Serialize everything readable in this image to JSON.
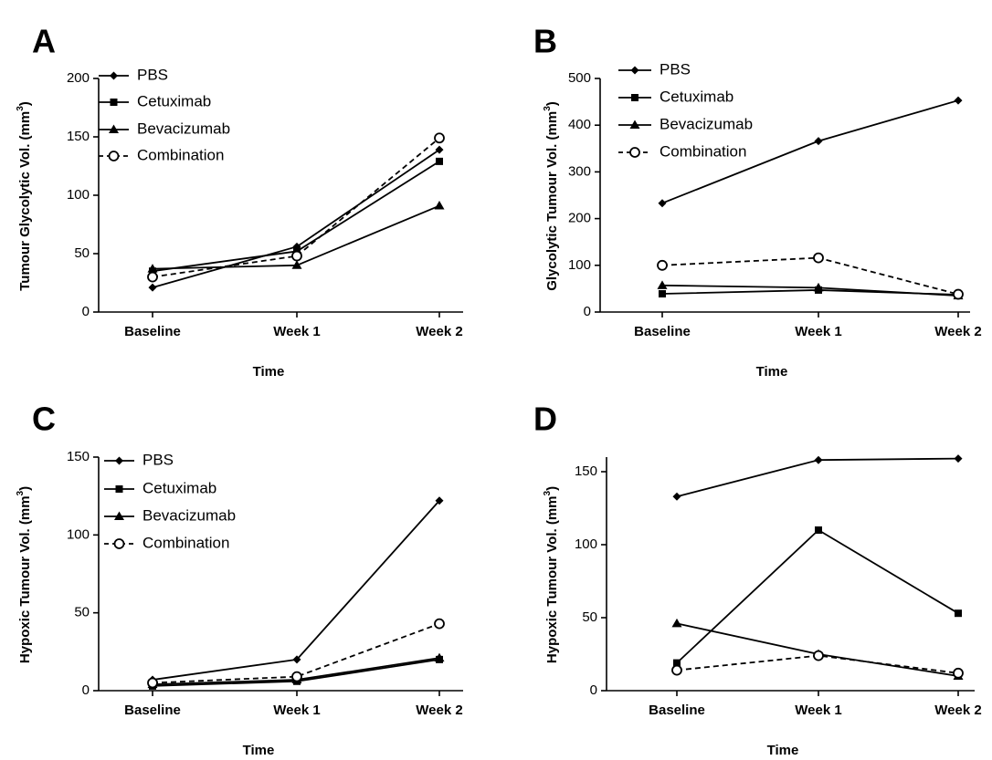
{
  "chart_data": [
    {
      "type": "line",
      "panel": "A",
      "xlabel": "Time",
      "ylabel": "Tumour Glycolytic Vol. (mm",
      "ylabel_sup": "3",
      "ylabel_end": ")",
      "categories": [
        "Baseline",
        "Week 1",
        "Week 2"
      ],
      "ylim": [
        0,
        200
      ],
      "yticks": [
        0,
        50,
        100,
        150,
        200
      ],
      "legend": "top-left",
      "series": [
        {
          "name": "PBS",
          "values": [
            21,
            56,
            139
          ],
          "marker": "diamond",
          "dash": false
        },
        {
          "name": "Cetuximab",
          "values": [
            35,
            52,
            129
          ],
          "marker": "square",
          "dash": false
        },
        {
          "name": "Bevacizumab",
          "values": [
            37,
            40,
            91
          ],
          "marker": "triangle",
          "dash": false
        },
        {
          "name": "Combination",
          "values": [
            30,
            48,
            149
          ],
          "marker": "circle-open",
          "dash": true
        }
      ]
    },
    {
      "type": "line",
      "panel": "B",
      "xlabel": "Time",
      "ylabel": "Glycolytic Tumour Vol. (mm",
      "ylabel_sup": "3",
      "ylabel_end": ")",
      "categories": [
        "Baseline",
        "Week 1",
        "Week 2"
      ],
      "ylim": [
        0,
        500
      ],
      "yticks": [
        0,
        100,
        200,
        300,
        400,
        500
      ],
      "legend": "top-left",
      "series": [
        {
          "name": "PBS",
          "values": [
            233,
            366,
            453
          ],
          "marker": "diamond",
          "dash": false
        },
        {
          "name": "Cetuximab",
          "values": [
            39,
            47,
            37
          ],
          "marker": "square",
          "dash": false
        },
        {
          "name": "Bevacizumab",
          "values": [
            57,
            52,
            35
          ],
          "marker": "triangle",
          "dash": false
        },
        {
          "name": "Combination",
          "values": [
            100,
            116,
            38
          ],
          "marker": "circle-open",
          "dash": true
        }
      ]
    },
    {
      "type": "line",
      "panel": "C",
      "xlabel": "Time",
      "ylabel": "Hypoxic Tumour Vol. (mm",
      "ylabel_sup": "3",
      "ylabel_end": ")",
      "categories": [
        "Baseline",
        "Week 1",
        "Week 2"
      ],
      "ylim": [
        0,
        150
      ],
      "yticks": [
        0,
        50,
        100,
        150
      ],
      "legend": "top-left",
      "series": [
        {
          "name": "PBS",
          "values": [
            7,
            20,
            122
          ],
          "marker": "diamond",
          "dash": false
        },
        {
          "name": "Cetuximab",
          "values": [
            3,
            6,
            20
          ],
          "marker": "square",
          "dash": false
        },
        {
          "name": "Bevacizumab",
          "values": [
            4,
            7,
            21
          ],
          "marker": "triangle",
          "dash": false
        },
        {
          "name": "Combination",
          "values": [
            5,
            9,
            43
          ],
          "marker": "circle-open",
          "dash": true
        }
      ]
    },
    {
      "type": "line",
      "panel": "D",
      "xlabel": "Time",
      "ylabel": "Hypoxic Tumour Vol. (mm",
      "ylabel_sup": "3",
      "ylabel_end": ")",
      "categories": [
        "Baseline",
        "Week 1",
        "Week 2"
      ],
      "ylim": [
        0,
        160
      ],
      "yticks": [
        0,
        50,
        100,
        150
      ],
      "legend": "none",
      "series": [
        {
          "values": [
            133,
            158,
            159
          ],
          "marker": "diamond",
          "dash": false
        },
        {
          "values": [
            19,
            110,
            53
          ],
          "marker": "square",
          "dash": false
        },
        {
          "values": [
            46,
            25,
            10
          ],
          "marker": "triangle",
          "dash": false
        },
        {
          "values": [
            14,
            24,
            12
          ],
          "marker": "circle-open",
          "dash": true
        }
      ]
    }
  ]
}
